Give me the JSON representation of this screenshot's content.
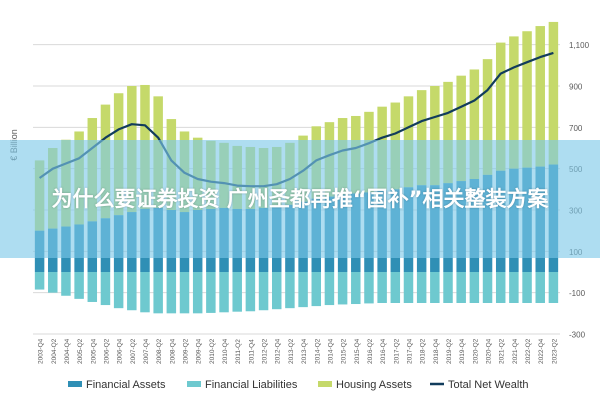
{
  "banner": {
    "title": "为什么要证券投资 广州圣都再推“国补”相关整装方案"
  },
  "colors": {
    "financial_assets": "#2f8fb5",
    "financial_liabilities": "#6ec9cf",
    "housing_assets": "#c5d96a",
    "total_net_wealth": "#123c5c",
    "grid": "#d9d9d9",
    "text": "#5a5a5a",
    "banner": "#7dc8e8"
  },
  "chart_data": {
    "type": "bar",
    "stacked": true,
    "ylabel": "€ Billion",
    "ylim": [
      -300,
      1200
    ],
    "yticks": [
      -300,
      -100,
      100,
      300,
      500,
      700,
      900,
      1100
    ],
    "ytick_labels": [
      "-300",
      "-100",
      "100",
      "300",
      "500",
      "700",
      "900",
      "1,100"
    ],
    "grid": true,
    "legend_position": "bottom",
    "categories": [
      "2003-Q4",
      "2004-Q2",
      "2004-Q4",
      "2005-Q2",
      "2005-Q4",
      "2006-Q2",
      "2006-Q4",
      "2007-Q2",
      "2007-Q4",
      "2008-Q2",
      "2008-Q4",
      "2009-Q2",
      "2009-Q4",
      "2010-Q2",
      "2010-Q4",
      "2011-Q2",
      "2011-Q4",
      "2012-Q2",
      "2012-Q4",
      "2013-Q2",
      "2013-Q4",
      "2014-Q2",
      "2014-Q4",
      "2015-Q2",
      "2015-Q4",
      "2016-Q2",
      "2016-Q4",
      "2017-Q2",
      "2017-Q4",
      "2018-Q2",
      "2018-Q4",
      "2019-Q2",
      "2019-Q4",
      "2020-Q2",
      "2020-Q4",
      "2021-Q2",
      "2021-Q4",
      "2022-Q2",
      "2022-Q4",
      "2023-Q2"
    ],
    "series": [
      {
        "name": "Financial Assets",
        "kind": "bar",
        "color_key": "financial_assets",
        "values": [
          200,
          210,
          220,
          230,
          245,
          260,
          275,
          290,
          305,
          310,
          300,
          290,
          300,
          305,
          310,
          305,
          305,
          310,
          315,
          325,
          340,
          355,
          365,
          375,
          380,
          385,
          395,
          400,
          410,
          420,
          420,
          430,
          440,
          450,
          470,
          490,
          500,
          505,
          510,
          520
        ]
      },
      {
        "name": "Financial Liabilities",
        "kind": "bar",
        "color_key": "financial_liabilities",
        "values": [
          -85,
          -100,
          -115,
          -130,
          -145,
          -160,
          -175,
          -185,
          -195,
          -200,
          -200,
          -200,
          -200,
          -198,
          -195,
          -192,
          -190,
          -185,
          -180,
          -175,
          -170,
          -165,
          -160,
          -157,
          -155,
          -152,
          -150,
          -150,
          -150,
          -150,
          -150,
          -150,
          -150,
          -150,
          -150,
          -150,
          -150,
          -150,
          -150,
          -150
        ]
      },
      {
        "name": "Housing Assets",
        "kind": "bar",
        "color_key": "housing_assets",
        "values": [
          340,
          390,
          420,
          450,
          500,
          550,
          590,
          610,
          600,
          540,
          440,
          390,
          350,
          330,
          315,
          305,
          300,
          290,
          290,
          300,
          320,
          350,
          360,
          370,
          375,
          390,
          405,
          420,
          440,
          460,
          480,
          490,
          510,
          530,
          560,
          620,
          640,
          660,
          680,
          690
        ]
      },
      {
        "name": "Total Net Wealth",
        "kind": "line",
        "color_key": "total_net_wealth",
        "values": [
          455,
          500,
          525,
          550,
          600,
          650,
          690,
          715,
          710,
          650,
          540,
          480,
          450,
          437,
          430,
          418,
          415,
          415,
          425,
          450,
          490,
          540,
          565,
          588,
          600,
          623,
          650,
          670,
          700,
          730,
          750,
          770,
          800,
          830,
          880,
          960,
          990,
          1015,
          1040,
          1060
        ]
      }
    ]
  }
}
